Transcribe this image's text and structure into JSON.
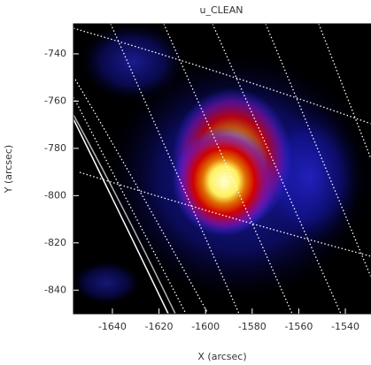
{
  "chart_data": {
    "type": "image",
    "title": "u_CLEAN",
    "x_label": "X (arcsec)",
    "y_label": "Y (arcsec)",
    "xlim": [
      -1656.7,
      -1529
    ],
    "ylim": [
      -850,
      -727.3
    ],
    "xticks": [
      -1640,
      -1620,
      -1600,
      -1580,
      -1560,
      -1540
    ],
    "yticks": [
      -840,
      -820,
      -800,
      -780,
      -760,
      -740
    ]
  }
}
